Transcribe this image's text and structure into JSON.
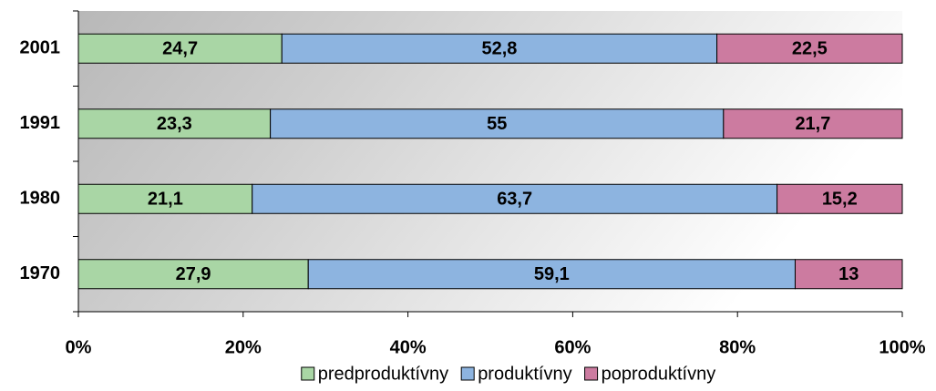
{
  "chart_data": {
    "type": "stacked_bar_horizontal",
    "categories": [
      "2001",
      "1991",
      "1980",
      "1970"
    ],
    "series": [
      {
        "name": "predproduktívny",
        "color": "#a9d6a5",
        "values": [
          24.7,
          23.3,
          21.1,
          27.9
        ],
        "value_labels": [
          "24,7",
          "23,3",
          "21,1",
          "27,9"
        ]
      },
      {
        "name": "produktívny",
        "color": "#8db4e0",
        "values": [
          52.8,
          55,
          63.7,
          59.1
        ],
        "value_labels": [
          "52,8",
          "55",
          "63,7",
          "59,1"
        ]
      },
      {
        "name": "poproduktívny",
        "color": "#cc7ba0",
        "values": [
          22.5,
          21.7,
          15.2,
          13
        ],
        "value_labels": [
          "22,5",
          "21,7",
          "15,2",
          "13"
        ]
      }
    ],
    "xlim": [
      0,
      100
    ],
    "xticks": [
      {
        "value": 0,
        "label": "0%"
      },
      {
        "value": 20,
        "label": "20%"
      },
      {
        "value": 40,
        "label": "40%"
      },
      {
        "value": 60,
        "label": "60%"
      },
      {
        "value": 80,
        "label": "80%"
      },
      {
        "value": 100,
        "label": "100%"
      }
    ],
    "legend": "bottom"
  }
}
